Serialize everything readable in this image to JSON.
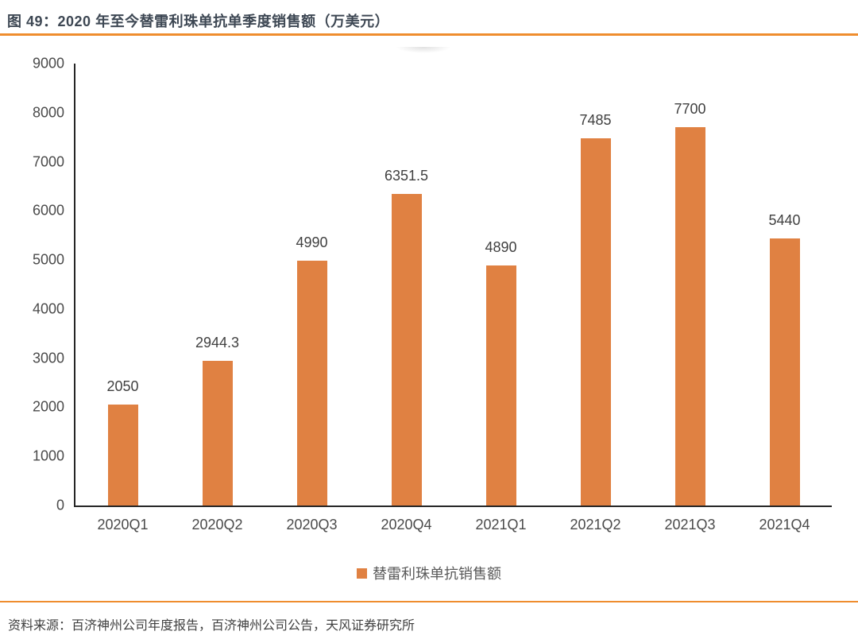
{
  "figure": {
    "title": "图 49：2020 年至今替雷利珠单抗单季度销售额（万美元）",
    "source": "资料来源：百济神州公司年度报告，百济神州公司公告，天风证券研究所"
  },
  "legend": {
    "label": "替雷利珠单抗销售额"
  },
  "colors": {
    "bar": "#e08142",
    "accent_rule": "#ef8d2e",
    "title_text": "#3d4753",
    "axis_text": "#4a4a4a",
    "value_text": "#404040",
    "legend_text": "#595959",
    "axis_line": "#262626"
  },
  "chart_data": {
    "type": "bar",
    "title": "图 49：2020 年至今替雷利珠单抗单季度销售额（万美元）",
    "categories": [
      "2020Q1",
      "2020Q2",
      "2020Q3",
      "2020Q4",
      "2021Q1",
      "2021Q2",
      "2021Q3",
      "2021Q4"
    ],
    "values": [
      2050,
      2944.3,
      4990,
      6351.5,
      4890,
      7485,
      7700,
      5440
    ],
    "value_labels": [
      "2050",
      "2944.3",
      "4990",
      "6351.5",
      "4890",
      "7485",
      "7700",
      "5440"
    ],
    "ytick_labels": [
      "0",
      "1000",
      "2000",
      "3000",
      "4000",
      "5000",
      "6000",
      "7000",
      "8000",
      "9000"
    ],
    "xlabel": "",
    "ylabel": "",
    "ylim": [
      0,
      9000
    ],
    "ytick_step": 1000,
    "grid": false,
    "legend_entries": [
      "替雷利珠单抗销售额"
    ],
    "legend_position": "bottom",
    "bar_color": "#e08142"
  }
}
